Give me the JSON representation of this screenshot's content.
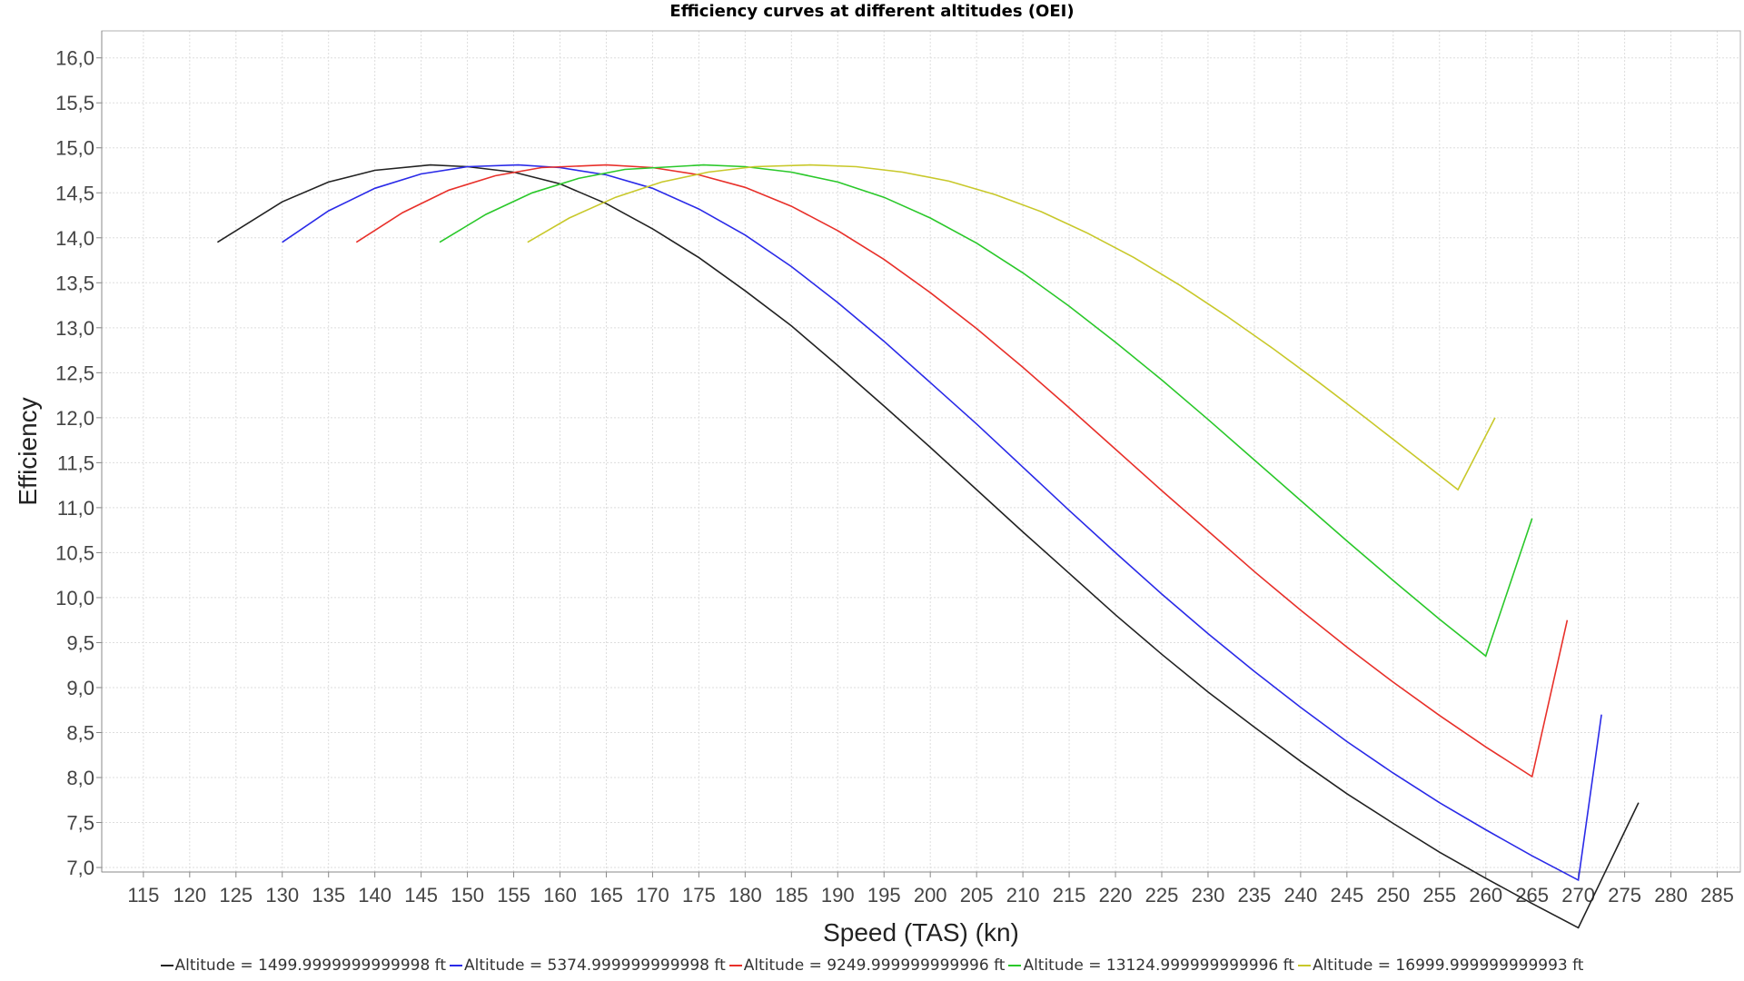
{
  "chart_data": {
    "type": "line",
    "title": "Efficiency curves at different altitudes (OEI)",
    "xlabel": "Speed (TAS) (kn)",
    "ylabel": "Efficiency",
    "xlim": [
      110.5,
      287.5
    ],
    "ylim": [
      6.95,
      16.3
    ],
    "x_ticks": [
      "115",
      "120",
      "125",
      "130",
      "135",
      "140",
      "145",
      "150",
      "155",
      "160",
      "165",
      "170",
      "175",
      "180",
      "185",
      "190",
      "195",
      "200",
      "205",
      "210",
      "215",
      "220",
      "225",
      "230",
      "235",
      "240",
      "245",
      "250",
      "255",
      "260",
      "265",
      "270",
      "275",
      "280",
      "285"
    ],
    "y_ticks": [
      "7,0",
      "7,5",
      "8,0",
      "8,5",
      "9,0",
      "9,5",
      "10,0",
      "10,5",
      "11,0",
      "11,5",
      "12,0",
      "12,5",
      "13,0",
      "13,5",
      "14,0",
      "14,5",
      "15,0",
      "15,5",
      "16,0"
    ],
    "grid": true,
    "legend_position": "bottom",
    "series": [
      {
        "name": "Altitude = 1499.9999999999998 ft",
        "color": "#222222",
        "points": [
          [
            123,
            13.95
          ],
          [
            130,
            14.4
          ],
          [
            135,
            14.62
          ],
          [
            140,
            14.75
          ],
          [
            146,
            14.81
          ],
          [
            150,
            14.79
          ],
          [
            155,
            14.73
          ],
          [
            160,
            14.6
          ],
          [
            165,
            14.38
          ],
          [
            170,
            14.1
          ],
          [
            175,
            13.78
          ],
          [
            180,
            13.41
          ],
          [
            185,
            13.02
          ],
          [
            190,
            12.58
          ],
          [
            195,
            12.13
          ],
          [
            200,
            11.67
          ],
          [
            205,
            11.2
          ],
          [
            210,
            10.73
          ],
          [
            215,
            10.27
          ],
          [
            220,
            9.81
          ],
          [
            225,
            9.37
          ],
          [
            230,
            8.95
          ],
          [
            235,
            8.56
          ],
          [
            240,
            8.18
          ],
          [
            245,
            7.82
          ],
          [
            250,
            7.49
          ],
          [
            255,
            7.17
          ],
          [
            260,
            6.88
          ],
          [
            265,
            6.6
          ],
          [
            270,
            6.33
          ],
          [
            276.5,
            7.72
          ]
        ]
      },
      {
        "name": "Altitude = 5374.999999999998 ft",
        "color": "#2a2ae8",
        "points": [
          [
            130,
            13.95
          ],
          [
            135,
            14.3
          ],
          [
            140,
            14.55
          ],
          [
            145,
            14.71
          ],
          [
            150,
            14.79
          ],
          [
            155.5,
            14.81
          ],
          [
            160,
            14.78
          ],
          [
            165,
            14.7
          ],
          [
            170,
            14.55
          ],
          [
            175,
            14.32
          ],
          [
            180,
            14.03
          ],
          [
            185,
            13.68
          ],
          [
            190,
            13.28
          ],
          [
            195,
            12.85
          ],
          [
            200,
            12.39
          ],
          [
            205,
            11.93
          ],
          [
            210,
            11.45
          ],
          [
            215,
            10.97
          ],
          [
            220,
            10.5
          ],
          [
            225,
            10.04
          ],
          [
            230,
            9.6
          ],
          [
            235,
            9.18
          ],
          [
            240,
            8.78
          ],
          [
            245,
            8.4
          ],
          [
            250,
            8.05
          ],
          [
            255,
            7.72
          ],
          [
            260,
            7.42
          ],
          [
            265,
            7.13
          ],
          [
            270,
            6.86
          ],
          [
            272.5,
            8.7
          ]
        ]
      },
      {
        "name": "Altitude = 9249.999999999996 ft",
        "color": "#e8302a",
        "points": [
          [
            138,
            13.95
          ],
          [
            143,
            14.28
          ],
          [
            148,
            14.53
          ],
          [
            153,
            14.69
          ],
          [
            158,
            14.78
          ],
          [
            165,
            14.81
          ],
          [
            170,
            14.78
          ],
          [
            175,
            14.7
          ],
          [
            180,
            14.56
          ],
          [
            185,
            14.35
          ],
          [
            190,
            14.08
          ],
          [
            195,
            13.76
          ],
          [
            200,
            13.39
          ],
          [
            205,
            12.99
          ],
          [
            210,
            12.56
          ],
          [
            215,
            12.11
          ],
          [
            220,
            11.65
          ],
          [
            225,
            11.19
          ],
          [
            230,
            10.74
          ],
          [
            235,
            10.29
          ],
          [
            240,
            9.86
          ],
          [
            245,
            9.45
          ],
          [
            250,
            9.06
          ],
          [
            255,
            8.69
          ],
          [
            260,
            8.34
          ],
          [
            265,
            8.01
          ],
          [
            268.8,
            9.75
          ]
        ]
      },
      {
        "name": "Altitude = 13124.999999999996 ft",
        "color": "#2ac82a",
        "points": [
          [
            147,
            13.95
          ],
          [
            152,
            14.26
          ],
          [
            157,
            14.5
          ],
          [
            162,
            14.66
          ],
          [
            167,
            14.76
          ],
          [
            175.5,
            14.81
          ],
          [
            180,
            14.79
          ],
          [
            185,
            14.73
          ],
          [
            190,
            14.62
          ],
          [
            195,
            14.45
          ],
          [
            200,
            14.22
          ],
          [
            205,
            13.94
          ],
          [
            210,
            13.61
          ],
          [
            215,
            13.24
          ],
          [
            220,
            12.84
          ],
          [
            225,
            12.42
          ],
          [
            230,
            11.98
          ],
          [
            235,
            11.53
          ],
          [
            240,
            11.08
          ],
          [
            245,
            10.63
          ],
          [
            250,
            10.19
          ],
          [
            255,
            9.76
          ],
          [
            260,
            9.35
          ],
          [
            265,
            10.88
          ]
        ]
      },
      {
        "name": "Altitude = 16999.999999999993 ft",
        "color": "#c8c82a",
        "points": [
          [
            156.5,
            13.95
          ],
          [
            161,
            14.22
          ],
          [
            166,
            14.45
          ],
          [
            171,
            14.62
          ],
          [
            176,
            14.73
          ],
          [
            181,
            14.79
          ],
          [
            187,
            14.81
          ],
          [
            192,
            14.79
          ],
          [
            197,
            14.73
          ],
          [
            202,
            14.63
          ],
          [
            207,
            14.48
          ],
          [
            212,
            14.29
          ],
          [
            217,
            14.05
          ],
          [
            222,
            13.78
          ],
          [
            227,
            13.47
          ],
          [
            232,
            13.13
          ],
          [
            237,
            12.77
          ],
          [
            242,
            12.39
          ],
          [
            247,
            12.0
          ],
          [
            252,
            11.6
          ],
          [
            257,
            11.2
          ],
          [
            261,
            12.0
          ]
        ]
      }
    ]
  }
}
